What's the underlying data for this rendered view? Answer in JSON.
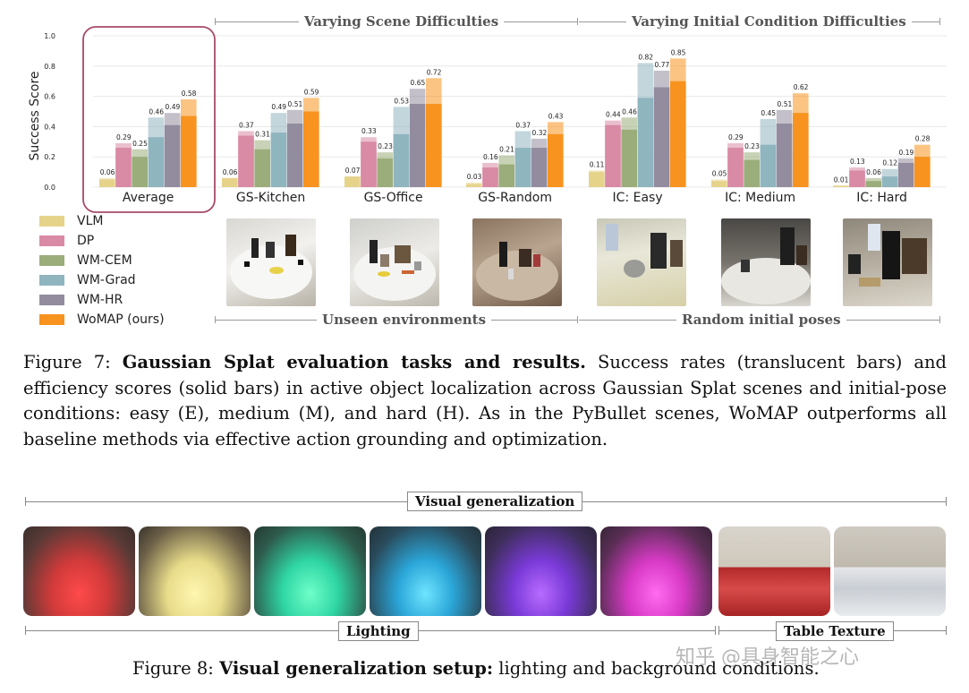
{
  "chart_data": {
    "type": "bar",
    "ylabel": "Success Score",
    "ylim": [
      0,
      1.0
    ],
    "yticks": [
      "0.0",
      "0.2",
      "0.4",
      "0.6",
      "0.8",
      "1.0"
    ],
    "categories": [
      "Average",
      "GS-Kitchen",
      "GS-Office",
      "GS-Random",
      "IC: Easy",
      "IC: Medium",
      "IC: Hard"
    ],
    "highlighted_category": "Average",
    "series": [
      {
        "name": "VLM",
        "color": "#e6d38a",
        "success": [
          0.06,
          0.06,
          0.07,
          0.03,
          0.11,
          0.05,
          0.01
        ],
        "efficiency": [
          0.05,
          0.06,
          0.07,
          0.02,
          0.1,
          0.04,
          0.01
        ]
      },
      {
        "name": "DP",
        "color": "#d98aa4",
        "success": [
          0.29,
          0.37,
          0.33,
          0.16,
          0.44,
          0.29,
          0.13
        ],
        "efficiency": [
          0.26,
          0.34,
          0.3,
          0.13,
          0.41,
          0.26,
          0.11
        ]
      },
      {
        "name": "WM-CEM",
        "color": "#9bad7a",
        "success": [
          0.25,
          0.31,
          0.23,
          0.21,
          0.46,
          0.23,
          0.06
        ],
        "efficiency": [
          0.2,
          0.25,
          0.19,
          0.15,
          0.38,
          0.18,
          0.04
        ]
      },
      {
        "name": "WM-Grad",
        "color": "#8fb5bf",
        "success": [
          0.46,
          0.49,
          0.53,
          0.37,
          0.82,
          0.45,
          0.12
        ],
        "efficiency": [
          0.33,
          0.36,
          0.35,
          0.26,
          0.59,
          0.28,
          0.07
        ]
      },
      {
        "name": "WM-HR",
        "color": "#938c9f",
        "success": [
          0.49,
          0.51,
          0.65,
          0.32,
          0.77,
          0.51,
          0.19
        ],
        "efficiency": [
          0.41,
          0.42,
          0.55,
          0.26,
          0.66,
          0.42,
          0.16
        ]
      },
      {
        "name": "WoMAP (ours)",
        "color": "#f7931e",
        "success": [
          0.58,
          0.59,
          0.72,
          0.43,
          0.85,
          0.62,
          0.28
        ],
        "efficiency": [
          0.47,
          0.5,
          0.55,
          0.35,
          0.7,
          0.49,
          0.2
        ]
      }
    ]
  },
  "sections": {
    "scene": "Varying Scene Difficulties",
    "initial": "Varying Initial Condition Difficulties",
    "unseen": "Unseen environments",
    "random": "Random initial poses"
  },
  "fig7": {
    "label": "Figure 7:",
    "title": "Gaussian Splat evaluation tasks and results.",
    "body": "Success rates (translucent bars) and efficiency scores (solid bars) in active object localization across Gaussian Splat scenes and initial-pose conditions: easy (E), medium (M), and hard (H). As in the PyBullet scenes, WoMAP outperforms all baseline methods via effective action grounding and optimization."
  },
  "fig8": {
    "label": "Figure 8:",
    "title": "Visual generalization setup:",
    "body": "lighting and background conditions.",
    "top_label": "Visual generalization",
    "lighting_label": "Lighting",
    "texture_label": "Table Texture"
  },
  "watermark": "知乎 @具身智能之心"
}
